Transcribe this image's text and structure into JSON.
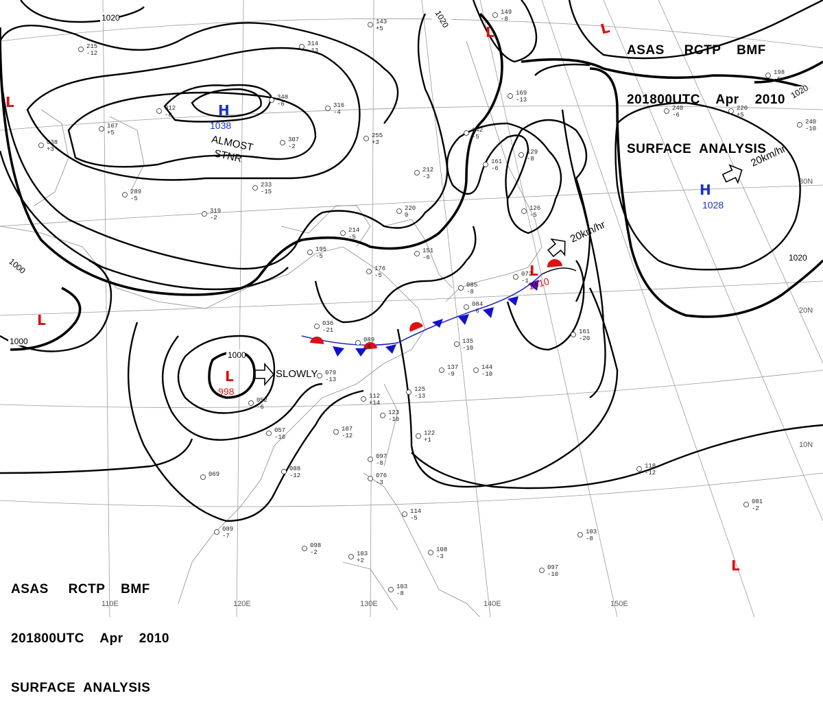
{
  "header_top": {
    "line1": "ASAS     RCTP    BMF",
    "line2": "201800UTC    Apr    2010",
    "line3": "SURFACE  ANALYSIS"
  },
  "header_bottom": {
    "line1": "ASAS     RCTP    BMF",
    "line2": "201800UTC    Apr    2010",
    "line3": "SURFACE  ANALYSIS"
  },
  "longitude_labels": [
    "110E",
    "120E",
    "130E",
    "140E",
    "150E"
  ],
  "latitude_labels": [
    "30N",
    "20N",
    "10N"
  ],
  "isobar_labels": {
    "nw": "1020",
    "n": "1020",
    "ne": "1020",
    "e": "1020",
    "w": "1000",
    "sw": "1000",
    "low": "1000"
  },
  "systems": {
    "high_west": {
      "letter": "H",
      "value": "1038",
      "note_line1": "ALMOST",
      "note_line2": "STNR"
    },
    "high_east": {
      "letter": "H",
      "value": "1028",
      "motion": "20km/hr"
    },
    "low_south": {
      "letter": "L",
      "value": "998",
      "motion": "SLOWLY"
    },
    "low_japan": {
      "letter": "L",
      "value": "1010",
      "motion": "20km/hr"
    },
    "low_other": {
      "letter": "L"
    }
  },
  "station_obs": [
    {
      "text": "215",
      "sub": "-12"
    },
    {
      "text": "312",
      "sub": "-8"
    },
    {
      "text": "038",
      "sub": "+3"
    },
    {
      "text": "314",
      "sub": "-13"
    },
    {
      "text": "348",
      "sub": "-6"
    },
    {
      "text": "316",
      "sub": "-4"
    },
    {
      "text": "307",
      "sub": "-2"
    },
    {
      "text": "255",
      "sub": "+3"
    },
    {
      "text": "212",
      "sub": "-3"
    },
    {
      "text": "233",
      "sub": "-15"
    },
    {
      "text": "289",
      "sub": "-5"
    },
    {
      "text": "167",
      "sub": "+5"
    },
    {
      "text": "319",
      "sub": "-2"
    },
    {
      "text": "214",
      "sub": "-5"
    },
    {
      "text": "220",
      "sub": "0"
    },
    {
      "text": "195",
      "sub": "-5"
    },
    {
      "text": "176",
      "sub": "-5"
    },
    {
      "text": "151",
      "sub": "-6"
    },
    {
      "text": "142",
      "sub": "-5"
    },
    {
      "text": "161",
      "sub": "-6"
    },
    {
      "text": "129",
      "sub": "-8"
    },
    {
      "text": "126",
      "sub": "-5"
    },
    {
      "text": "169",
      "sub": "-13"
    },
    {
      "text": "072",
      "sub": "-1"
    },
    {
      "text": "085",
      "sub": "-8"
    },
    {
      "text": "084",
      "sub": "-6"
    },
    {
      "text": "036",
      "sub": "-21"
    },
    {
      "text": "089",
      "sub": "-8"
    },
    {
      "text": "135",
      "sub": "-10"
    },
    {
      "text": "137",
      "sub": "-9"
    },
    {
      "text": "144",
      "sub": "-10"
    },
    {
      "text": "079",
      "sub": "-13"
    },
    {
      "text": "052",
      "sub": "-6"
    },
    {
      "text": "112",
      "sub": "+14"
    },
    {
      "text": "125",
      "sub": "-13"
    },
    {
      "text": "123",
      "sub": "-10"
    },
    {
      "text": "122",
      "sub": "+1"
    },
    {
      "text": "107",
      "sub": "-12"
    },
    {
      "text": "057",
      "sub": "-10"
    },
    {
      "text": "088",
      "sub": "-12"
    },
    {
      "text": "069",
      "sub": ""
    },
    {
      "text": "089",
      "sub": "-7"
    },
    {
      "text": "098",
      "sub": "-2"
    },
    {
      "text": "103",
      "sub": "+2"
    },
    {
      "text": "097",
      "sub": "-8"
    },
    {
      "text": "076",
      "sub": "-3"
    },
    {
      "text": "114",
      "sub": "-5"
    },
    {
      "text": "108",
      "sub": "-3"
    },
    {
      "text": "103",
      "sub": "-8"
    },
    {
      "text": "118",
      "sub": "-12"
    },
    {
      "text": "161",
      "sub": "-20"
    },
    {
      "text": "103",
      "sub": "-8"
    },
    {
      "text": "097",
      "sub": "-10"
    },
    {
      "text": "081",
      "sub": "-2"
    },
    {
      "text": "240",
      "sub": "-6"
    },
    {
      "text": "220",
      "sub": "+5"
    },
    {
      "text": "240",
      "sub": "-10"
    },
    {
      "text": "198",
      "sub": "-5"
    },
    {
      "text": "143",
      "sub": "+5"
    },
    {
      "text": "149",
      "sub": "-8"
    }
  ]
}
